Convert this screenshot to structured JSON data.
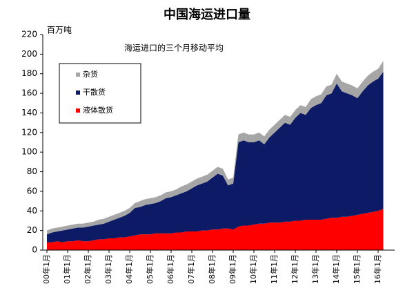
{
  "chart_data": {
    "type": "stacked_area",
    "title": "中国海运进口量",
    "y_label": "百万吨",
    "subtitle": "海运进口的三个月移动平均",
    "categories": [
      "00年1月",
      null,
      null,
      null,
      "01年1月",
      null,
      null,
      null,
      "02年1月",
      null,
      null,
      null,
      "03年1月",
      null,
      null,
      null,
      "04年1月",
      null,
      null,
      null,
      "05年1月",
      null,
      null,
      null,
      "06年1月",
      null,
      null,
      null,
      "07年1月",
      null,
      null,
      null,
      "08年1月",
      null,
      null,
      null,
      "09年1月",
      null,
      null,
      null,
      "10年1月",
      null,
      null,
      null,
      "11年1月",
      null,
      null,
      null,
      "12年1月",
      null,
      null,
      null,
      "13年1月",
      null,
      null,
      null,
      "14年1月",
      null,
      null,
      null,
      "15年1月",
      null,
      null,
      null,
      "16年1月",
      null
    ],
    "series": [
      {
        "name": "液体散货",
        "color": "#ff0000",
        "values": [
          8,
          8,
          9,
          8,
          9,
          9,
          10,
          9,
          9,
          10,
          11,
          11,
          12,
          12,
          13,
          13,
          14,
          15,
          16,
          16,
          16,
          17,
          17,
          17,
          17,
          18,
          18,
          19,
          19,
          19,
          20,
          20,
          21,
          21,
          22,
          22,
          21,
          24,
          25,
          25,
          26,
          27,
          27,
          28,
          28,
          28,
          29,
          29,
          30,
          30,
          31,
          31,
          31,
          31,
          32,
          33,
          33,
          34,
          34,
          35,
          36,
          37,
          38,
          39,
          40,
          42
        ]
      },
      {
        "name": "干散货",
        "color": "#0d1b66",
        "values": [
          8,
          10,
          10,
          12,
          12,
          13,
          13,
          14,
          15,
          15,
          15,
          16,
          17,
          19,
          20,
          22,
          24,
          28,
          28,
          30,
          31,
          31,
          33,
          36,
          37,
          38,
          40,
          41,
          44,
          47,
          48,
          50,
          53,
          57,
          54,
          44,
          47,
          86,
          87,
          85,
          84,
          85,
          81,
          87,
          92,
          97,
          101,
          99,
          105,
          110,
          107,
          114,
          117,
          119,
          126,
          127,
          137,
          128,
          126,
          123,
          119,
          125,
          130,
          133,
          135,
          140
        ]
      },
      {
        "name": "杂货",
        "color": "#a6a6a6",
        "values": [
          4,
          4,
          4,
          4,
          4,
          4,
          4,
          4,
          4,
          4,
          5,
          5,
          5,
          5,
          5,
          5,
          5,
          5,
          6,
          6,
          6,
          6,
          6,
          6,
          6,
          6,
          7,
          7,
          7,
          7,
          7,
          7,
          7,
          7,
          7,
          6,
          6,
          8,
          8,
          8,
          8,
          8,
          8,
          8,
          8,
          8,
          8,
          8,
          8,
          8,
          8,
          9,
          9,
          9,
          9,
          9,
          10,
          10,
          10,
          10,
          10,
          10,
          10,
          10,
          10,
          11
        ]
      }
    ],
    "ylim": [
      0,
      220
    ],
    "yticks": [
      0,
      20,
      40,
      60,
      80,
      100,
      120,
      140,
      160,
      180,
      200,
      220
    ],
    "grid": false
  }
}
